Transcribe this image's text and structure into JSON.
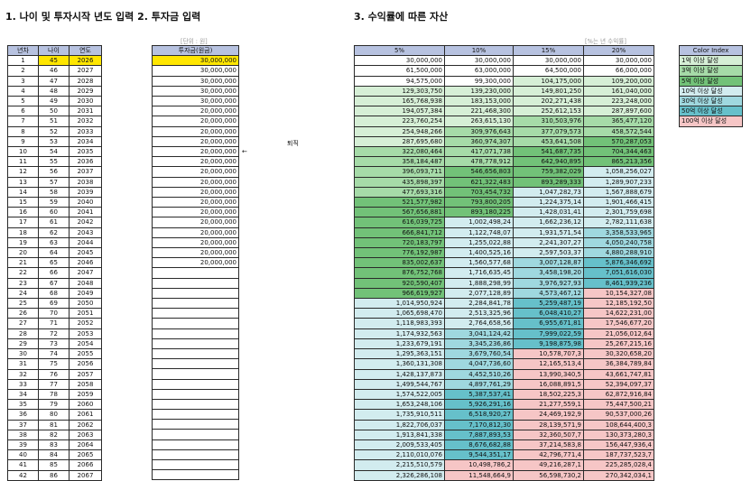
{
  "headings": {
    "input": "1. 나이 및 투자시작 년도 입력 2. 투자금 입력",
    "assets": "3. 수익률에 따른 자산"
  },
  "notes": {
    "unit": "[단위 : 원]",
    "rate": "[%는 년 수익률]"
  },
  "side": {
    "retire": "퇴직",
    "arrow": "←"
  },
  "left_table": {
    "headers": [
      "년차",
      "나이",
      "연도"
    ],
    "rows": [
      [
        "1",
        "45",
        "2026"
      ],
      [
        "2",
        "46",
        "2027"
      ],
      [
        "3",
        "47",
        "2028"
      ],
      [
        "4",
        "48",
        "2029"
      ],
      [
        "5",
        "49",
        "2030"
      ],
      [
        "6",
        "50",
        "2031"
      ],
      [
        "7",
        "51",
        "2032"
      ],
      [
        "8",
        "52",
        "2033"
      ],
      [
        "9",
        "53",
        "2034"
      ],
      [
        "10",
        "54",
        "2035"
      ],
      [
        "11",
        "55",
        "2036"
      ],
      [
        "12",
        "56",
        "2037"
      ],
      [
        "13",
        "57",
        "2038"
      ],
      [
        "14",
        "58",
        "2039"
      ],
      [
        "15",
        "59",
        "2040"
      ],
      [
        "16",
        "60",
        "2041"
      ],
      [
        "17",
        "61",
        "2042"
      ],
      [
        "18",
        "62",
        "2043"
      ],
      [
        "19",
        "63",
        "2044"
      ],
      [
        "20",
        "64",
        "2045"
      ],
      [
        "21",
        "65",
        "2046"
      ],
      [
        "22",
        "66",
        "2047"
      ],
      [
        "23",
        "67",
        "2048"
      ],
      [
        "24",
        "68",
        "2049"
      ],
      [
        "25",
        "69",
        "2050"
      ],
      [
        "26",
        "70",
        "2051"
      ],
      [
        "27",
        "71",
        "2052"
      ],
      [
        "28",
        "72",
        "2053"
      ],
      [
        "29",
        "73",
        "2054"
      ],
      [
        "30",
        "74",
        "2055"
      ],
      [
        "31",
        "75",
        "2056"
      ],
      [
        "32",
        "76",
        "2057"
      ],
      [
        "33",
        "77",
        "2058"
      ],
      [
        "34",
        "78",
        "2059"
      ],
      [
        "35",
        "79",
        "2060"
      ],
      [
        "36",
        "80",
        "2061"
      ],
      [
        "37",
        "81",
        "2062"
      ],
      [
        "38",
        "82",
        "2063"
      ],
      [
        "39",
        "83",
        "2064"
      ],
      [
        "40",
        "84",
        "2065"
      ],
      [
        "41",
        "85",
        "2066"
      ],
      [
        "42",
        "86",
        "2067"
      ]
    ]
  },
  "invest_table": {
    "header": "투자금(원금)",
    "rows": [
      "30,000,000",
      "30,000,000",
      "30,000,000",
      "30,000,000",
      "30,000,000",
      "20,000,000",
      "20,000,000",
      "20,000,000",
      "20,000,000",
      "20,000,000",
      "20,000,000",
      "20,000,000",
      "20,000,000",
      "20,000,000",
      "20,000,000",
      "20,000,000",
      "20,000,000",
      "20,000,000",
      "20,000,000",
      "20,000,000",
      "20,000,000",
      "",
      "",
      "",
      "",
      "",
      "",
      "",
      "",
      "",
      "",
      "",
      "",
      "",
      "",
      "",
      "",
      "",
      "",
      "",
      "",
      ""
    ]
  },
  "asset_table": {
    "headers": [
      "5%",
      "10%",
      "15%",
      "20%"
    ],
    "rows": [
      [
        "30,000,000",
        "30,000,000",
        "30,000,000",
        "30,000,000"
      ],
      [
        "61,500,000",
        "63,000,000",
        "64,500,000",
        "66,000,000"
      ],
      [
        "94,575,000",
        "99,300,000",
        "104,175,000",
        "109,200,000"
      ],
      [
        "129,303,750",
        "139,230,000",
        "149,801,250",
        "161,040,000"
      ],
      [
        "165,768,938",
        "183,153,000",
        "202,271,438",
        "223,248,000"
      ],
      [
        "194,057,384",
        "221,468,300",
        "252,612,153",
        "287,897,600"
      ],
      [
        "223,760,254",
        "263,615,130",
        "310,503,976",
        "365,477,120"
      ],
      [
        "254,948,266",
        "309,976,643",
        "377,079,573",
        "458,572,544"
      ],
      [
        "287,695,680",
        "360,974,307",
        "453,641,508",
        "570,287,053"
      ],
      [
        "322,080,464",
        "417,071,738",
        "541,687,735",
        "704,344,463"
      ],
      [
        "358,184,487",
        "478,778,912",
        "642,940,895",
        "865,213,356"
      ],
      [
        "396,093,711",
        "546,656,803",
        "759,382,029",
        "1,058,256,027"
      ],
      [
        "435,898,397",
        "621,322,483",
        "893,289,333",
        "1,289,907,233"
      ],
      [
        "477,693,316",
        "703,454,732",
        "1,047,282,73",
        "1,567,888,679"
      ],
      [
        "521,577,982",
        "793,800,205",
        "1,224,375,14",
        "1,901,466,415"
      ],
      [
        "567,656,881",
        "893,180,225",
        "1,428,031,41",
        "2,301,759,698"
      ],
      [
        "616,039,725",
        "1,002,498,24",
        "1,662,236,12",
        "2,782,111,638"
      ],
      [
        "666,841,712",
        "1,122,748,07",
        "1,931,571,54",
        "3,358,533,965"
      ],
      [
        "720,183,797",
        "1,255,022,88",
        "2,241,307,27",
        "4,050,240,758"
      ],
      [
        "776,192,987",
        "1,400,525,16",
        "2,597,503,37",
        "4,880,288,910"
      ],
      [
        "835,002,637",
        "1,560,577,68",
        "3,007,128,87",
        "5,876,346,692"
      ],
      [
        "876,752,768",
        "1,716,635,45",
        "3,458,198,20",
        "7,051,616,030"
      ],
      [
        "920,590,407",
        "1,888,298,99",
        "3,976,927,93",
        "8,461,939,236"
      ],
      [
        "966,619,927",
        "2,077,128,89",
        "4,573,467,12",
        "10,154,327,08"
      ],
      [
        "1,014,950,924",
        "2,284,841,78",
        "5,259,487,19",
        "12,185,192,50"
      ],
      [
        "1,065,698,470",
        "2,513,325,96",
        "6,048,410,27",
        "14,622,231,00"
      ],
      [
        "1,118,983,393",
        "2,764,658,56",
        "6,955,671,81",
        "17,546,677,20"
      ],
      [
        "1,174,932,563",
        "3,041,124,42",
        "7,999,022,59",
        "21,056,012,64"
      ],
      [
        "1,233,679,191",
        "3,345,236,86",
        "9,198,875,98",
        "25,267,215,16"
      ],
      [
        "1,295,363,151",
        "3,679,760,54",
        "10,578,707,3",
        "30,320,658,20"
      ],
      [
        "1,360,131,308",
        "4,047,736,60",
        "12,165,513,4",
        "36,384,789,84"
      ],
      [
        "1,428,137,873",
        "4,452,510,26",
        "13,990,340,5",
        "43,661,747,81"
      ],
      [
        "1,499,544,767",
        "4,897,761,29",
        "16,088,891,5",
        "52,394,097,37"
      ],
      [
        "1,574,522,005",
        "5,387,537,41",
        "18,502,225,3",
        "62,872,916,84"
      ],
      [
        "1,653,248,106",
        "5,926,291,16",
        "21,277,559,1",
        "75,447,500,21"
      ],
      [
        "1,735,910,511",
        "6,518,920,27",
        "24,469,192,9",
        "90,537,000,26"
      ],
      [
        "1,822,706,037",
        "7,170,812,30",
        "28,139,571,9",
        "108,644,400,3"
      ],
      [
        "1,913,841,338",
        "7,887,893,53",
        "32,360,507,7",
        "130,373,280,3"
      ],
      [
        "2,009,533,405",
        "8,676,682,88",
        "37,214,583,8",
        "156,447,936,4"
      ],
      [
        "2,110,010,076",
        "9,544,351,17",
        "42,796,771,4",
        "187,737,523,7"
      ],
      [
        "2,215,510,579",
        "10,498,786,2",
        "49,216,287,1",
        "225,285,028,4"
      ],
      [
        "2,326,286,108",
        "11,548,664,9",
        "56,598,730,2",
        "270,342,034,1"
      ]
    ]
  },
  "legend": {
    "header": "Color Index",
    "items": [
      {
        "label": "1억 이상 달성",
        "color": "#d6efd6"
      },
      {
        "label": "3억 이상 달성",
        "color": "#a6dba8"
      },
      {
        "label": "5억 이상 달성",
        "color": "#72c278"
      },
      {
        "label": "10억 이상 달성",
        "color": "#d2ecef"
      },
      {
        "label": "30억 이상 달성",
        "color": "#9fd8df"
      },
      {
        "label": "50억 이상 달성",
        "color": "#66c0ca"
      },
      {
        "label": "100억 이상 달성",
        "color": "#f6c6c6"
      }
    ]
  },
  "colors": {
    "header": "#b7c2e0",
    "highlight": "#ffe600"
  }
}
